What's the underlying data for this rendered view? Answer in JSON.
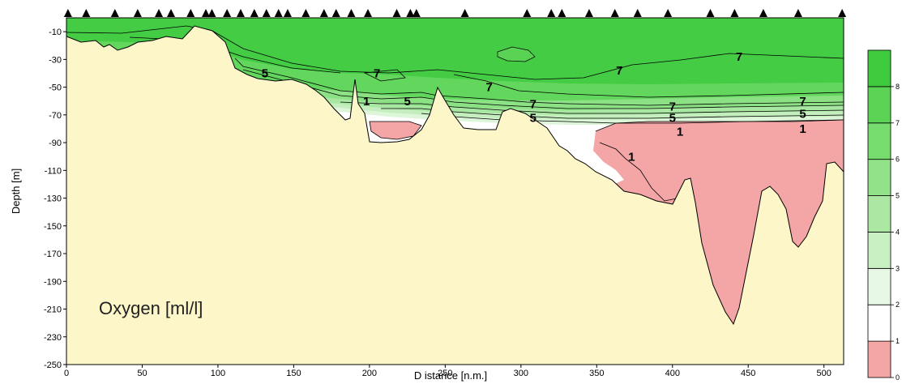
{
  "chart_data": {
    "type": "heatmap",
    "title": "",
    "annotation": "Oxygen [ml/l]",
    "xlabel": "D istance [n.m.]",
    "ylabel": "Depth [m]",
    "xlim": [
      0,
      513
    ],
    "ylim": [
      -250,
      0
    ],
    "x_ticks": [
      0,
      50,
      100,
      150,
      200,
      250,
      300,
      350,
      400,
      450,
      500
    ],
    "y_ticks": [
      -10,
      -30,
      -50,
      -70,
      -90,
      -110,
      -130,
      -150,
      -170,
      -190,
      -210,
      -230,
      -250
    ],
    "station_markers_x": [
      1,
      13,
      32,
      47,
      61,
      69,
      82,
      92,
      96,
      106,
      115,
      124,
      132,
      140,
      146,
      158,
      170,
      178,
      188,
      199,
      218,
      227,
      231,
      263,
      304,
      320,
      327,
      345,
      362,
      377,
      397,
      425,
      441,
      460,
      483,
      512
    ],
    "colorbar": {
      "levels": [
        0,
        1,
        2,
        3,
        4,
        5,
        6,
        7,
        8
      ],
      "colors": [
        "#f4a5a5",
        "#ffffff",
        "#e8f8e6",
        "#c8efc2",
        "#ace8a4",
        "#91e289",
        "#76dc6e",
        "#5bd456",
        "#3ecc3e"
      ]
    },
    "contour_labels": [
      {
        "text": "5",
        "x": 131,
        "y": -43
      },
      {
        "text": "7",
        "x": 205,
        "y": -43
      },
      {
        "text": "1",
        "x": 198,
        "y": -63
      },
      {
        "text": "5",
        "x": 225,
        "y": -63
      },
      {
        "text": "7",
        "x": 279,
        "y": -53
      },
      {
        "text": "7",
        "x": 308,
        "y": -65
      },
      {
        "text": "5",
        "x": 308,
        "y": -75
      },
      {
        "text": "7",
        "x": 365,
        "y": -41
      },
      {
        "text": "7",
        "x": 444,
        "y": -31
      },
      {
        "text": "7",
        "x": 400,
        "y": -67
      },
      {
        "text": "5",
        "x": 400,
        "y": -75
      },
      {
        "text": "1",
        "x": 405,
        "y": -85
      },
      {
        "text": "1",
        "x": 373,
        "y": -103
      },
      {
        "text": "7",
        "x": 486,
        "y": -63
      },
      {
        "text": "5",
        "x": 486,
        "y": -72
      },
      {
        "text": "1",
        "x": 486,
        "y": -83
      }
    ]
  }
}
